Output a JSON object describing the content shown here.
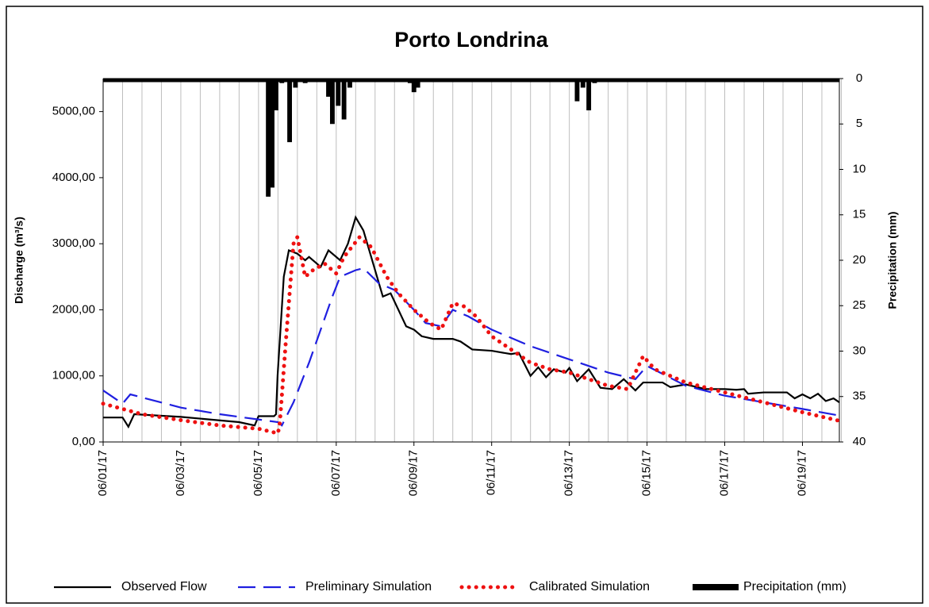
{
  "chart_data": {
    "type": "line",
    "title": "Porto Londrina",
    "y_label": "Discharge  (m³/s)",
    "y2_label": "Precipitation (mm)",
    "xlim": [
      0,
      18.95
    ],
    "xticks": [
      {
        "value": 0,
        "label": "06/01/17"
      },
      {
        "value": 2,
        "label": "06/03/17"
      },
      {
        "value": 4,
        "label": "06/05/17"
      },
      {
        "value": 6,
        "label": "06/07/17"
      },
      {
        "value": 8,
        "label": "06/09/17"
      },
      {
        "value": 10,
        "label": "06/11/17"
      },
      {
        "value": 12,
        "label": "06/13/17"
      },
      {
        "value": 14,
        "label": "06/15/17"
      },
      {
        "value": 16,
        "label": "06/17/17"
      },
      {
        "value": 18,
        "label": "06/19/17"
      }
    ],
    "xgrid_interval": 0.5,
    "grid": "x",
    "ylim": [
      0,
      5500
    ],
    "yticks": [
      {
        "value": 0,
        "label": "0,00"
      },
      {
        "value": 1000,
        "label": "1000,00"
      },
      {
        "value": 2000,
        "label": "2000,00"
      },
      {
        "value": 3000,
        "label": "3000,00"
      },
      {
        "value": 4000,
        "label": "4000,00"
      },
      {
        "value": 5000,
        "label": "5000,00"
      }
    ],
    "y2lim": [
      40,
      0
    ],
    "y2ticks": [
      0,
      5,
      10,
      15,
      20,
      25,
      30,
      35,
      40
    ],
    "legend": "bottom",
    "series": [
      {
        "name": "Observed Flow",
        "color": "#000000",
        "style": "solid",
        "x": [
          0,
          0.5,
          0.65,
          0.8,
          2,
          3.5,
          3.9,
          4.0,
          4.4,
          4.45,
          4.49,
          4.65,
          4.78,
          5.0,
          5.2,
          5.3,
          5.6,
          5.8,
          6.1,
          6.3,
          6.5,
          6.7,
          6.9,
          7.05,
          7.2,
          7.4,
          7.6,
          7.8,
          8.0,
          8.2,
          8.5,
          9.0,
          9.2,
          9.5,
          10,
          10.5,
          10.7,
          11.0,
          11.2,
          11.4,
          11.6,
          11.9,
          12.0,
          12.2,
          12.5,
          12.8,
          13.1,
          13.4,
          13.7,
          13.9,
          14.4,
          14.6,
          15.0,
          15.5,
          16.0,
          16.3,
          16.5,
          16.6,
          17.0,
          17.6,
          17.8,
          18.0,
          18.2,
          18.4,
          18.6,
          18.8,
          18.95
        ],
        "values": [
          370,
          370,
          230,
          420,
          380,
          300,
          250,
          390,
          390,
          420,
          1000,
          2500,
          2900,
          2850,
          2750,
          2800,
          2650,
          2900,
          2750,
          3000,
          3400,
          3200,
          2800,
          2500,
          2200,
          2250,
          2000,
          1750,
          1700,
          1600,
          1560,
          1560,
          1520,
          1400,
          1380,
          1330,
          1350,
          1000,
          1130,
          980,
          1100,
          1050,
          1120,
          920,
          1100,
          820,
          800,
          950,
          780,
          900,
          900,
          830,
          870,
          800,
          800,
          790,
          800,
          730,
          750,
          750,
          660,
          720,
          660,
          730,
          620,
          660,
          600
        ]
      },
      {
        "name": "Preliminary Simulation",
        "color": "#1f1fe0",
        "style": "dashed",
        "x": [
          0,
          0.5,
          0.7,
          2,
          3,
          4.5,
          4.6,
          4.9,
          5.3,
          5.6,
          5.9,
          6.1,
          6.5,
          6.7,
          7.1,
          7.5,
          8.0,
          8.3,
          8.7,
          9.0,
          9.4,
          10,
          11,
          12,
          13,
          13.7,
          14,
          14.5,
          15,
          16,
          17,
          18,
          18.95
        ],
        "values": [
          780,
          580,
          720,
          520,
          420,
          300,
          250,
          600,
          1200,
          1700,
          2200,
          2500,
          2600,
          2630,
          2400,
          2300,
          2000,
          1800,
          1750,
          2000,
          1900,
          1700,
          1450,
          1250,
          1050,
          950,
          1150,
          1000,
          850,
          700,
          600,
          500,
          400
        ]
      },
      {
        "name": "Calibrated Simulation",
        "color": "#ee1111",
        "style": "dotted",
        "x": [
          0,
          0.5,
          1,
          2,
          3,
          4,
          4.5,
          4.55,
          4.7,
          4.9,
          5.0,
          5.1,
          5.2,
          5.4,
          5.7,
          6.0,
          6.2,
          6.6,
          6.9,
          7.3,
          7.6,
          8.0,
          8.4,
          8.7,
          9.0,
          9.3,
          9.6,
          10,
          10.5,
          11,
          11.5,
          12,
          12.5,
          13,
          13.5,
          13.9,
          14.2,
          15,
          16,
          17,
          18,
          18.95
        ],
        "values": [
          580,
          500,
          420,
          330,
          250,
          200,
          130,
          300,
          1500,
          3000,
          3100,
          2800,
          2500,
          2600,
          2700,
          2550,
          2800,
          3100,
          2950,
          2500,
          2250,
          2000,
          1800,
          1700,
          2100,
          2050,
          1900,
          1600,
          1400,
          1200,
          1100,
          1050,
          950,
          850,
          800,
          1300,
          1100,
          900,
          750,
          600,
          450,
          320
        ]
      },
      {
        "name": "Precipitation (mm)",
        "color": "#000000",
        "type": "bar",
        "axis": "y2",
        "x": [
          4.25,
          4.35,
          4.45,
          4.6,
          4.8,
          4.95,
          5.2,
          5.3,
          5.8,
          5.9,
          6.05,
          6.2,
          6.35,
          7.9,
          8.0,
          8.1,
          12.2,
          12.35,
          12.5,
          12.65,
          12.8
        ],
        "values": [
          13,
          12,
          3.5,
          0.5,
          7,
          1,
          0.5,
          0.3,
          2,
          5,
          3,
          4.5,
          1,
          0.5,
          1.5,
          1,
          2.5,
          1,
          3.5,
          0.5,
          0.3
        ]
      }
    ]
  }
}
